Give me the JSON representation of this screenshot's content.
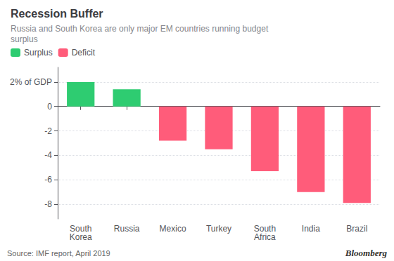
{
  "chart_data": {
    "type": "bar",
    "title": "Recession Buffer",
    "subtitle": "Russia and South Korea are only major EM countries running budget\nsurplus",
    "categories": [
      "South\nKorea",
      "Russia",
      "Mexico",
      "Turkey",
      "South\nAfrica",
      "India",
      "Brazil"
    ],
    "series": [
      {
        "name": "Surplus",
        "color": "#2ecc71",
        "values": [
          2.0,
          1.4,
          null,
          null,
          null,
          null,
          null
        ]
      },
      {
        "name": "Deficit",
        "color": "#ff5c7a",
        "values": [
          null,
          null,
          -2.8,
          -3.5,
          -5.3,
          -7.0,
          -7.9
        ]
      }
    ],
    "ylim": [
      -9.2,
      3.2
    ],
    "yticks": [
      {
        "value": 2,
        "label": "2% of GDP"
      },
      0,
      -2,
      -4,
      -6,
      -8
    ],
    "grid": true,
    "legend": "top-left",
    "annotations": [
      "Source: IMF report, April 2019",
      "Bloomberg"
    ]
  }
}
